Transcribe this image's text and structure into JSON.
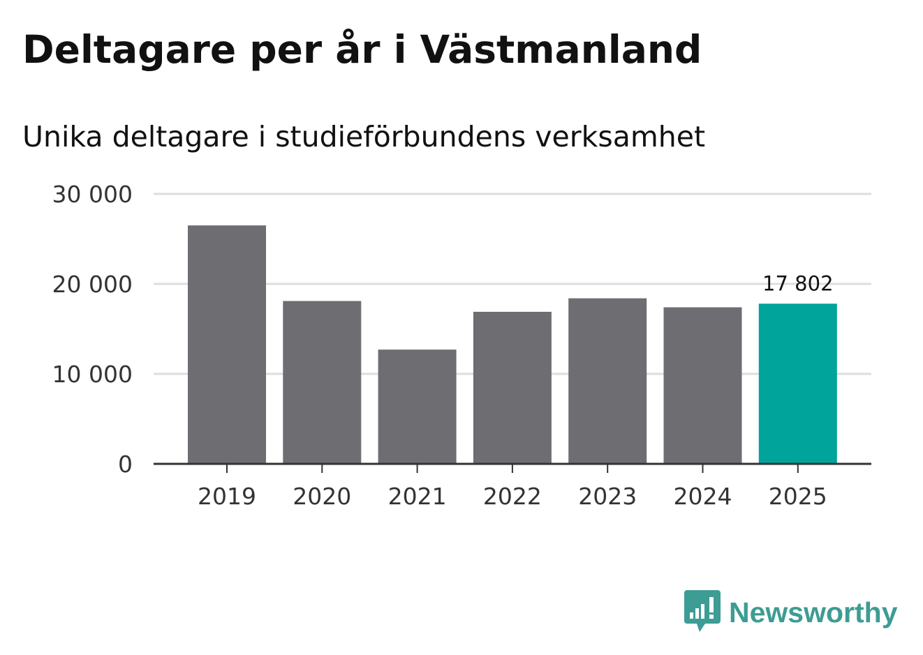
{
  "header": {
    "title": "Deltagare per år i Västmanland",
    "subtitle": "Unika deltagare i studieförbundens verksamhet"
  },
  "brand": {
    "name": "Newsworthy",
    "icon": "newsworthy-logo-icon",
    "color": "#3d9c94"
  },
  "colors": {
    "bar_default": "#6e6d72",
    "bar_highlight": "#00a49a",
    "gridline": "#dddddd",
    "axis": "#333333"
  },
  "chart_data": {
    "type": "bar",
    "title": "Deltagare per år i Västmanland",
    "subtitle": "Unika deltagare i studieförbundens verksamhet",
    "xlabel": "",
    "ylabel": "",
    "categories": [
      "2019",
      "2020",
      "2021",
      "2022",
      "2023",
      "2024",
      "2025"
    ],
    "values": [
      26500,
      18100,
      12700,
      16900,
      18400,
      17400,
      17802
    ],
    "highlight_index": 6,
    "highlight_label": "17 802",
    "ylim": [
      0,
      30000
    ],
    "yticks": [
      0,
      10000,
      20000,
      30000
    ],
    "ytick_labels": [
      "0",
      "10 000",
      "20 000",
      "30 000"
    ],
    "grid": true,
    "legend": "none"
  }
}
